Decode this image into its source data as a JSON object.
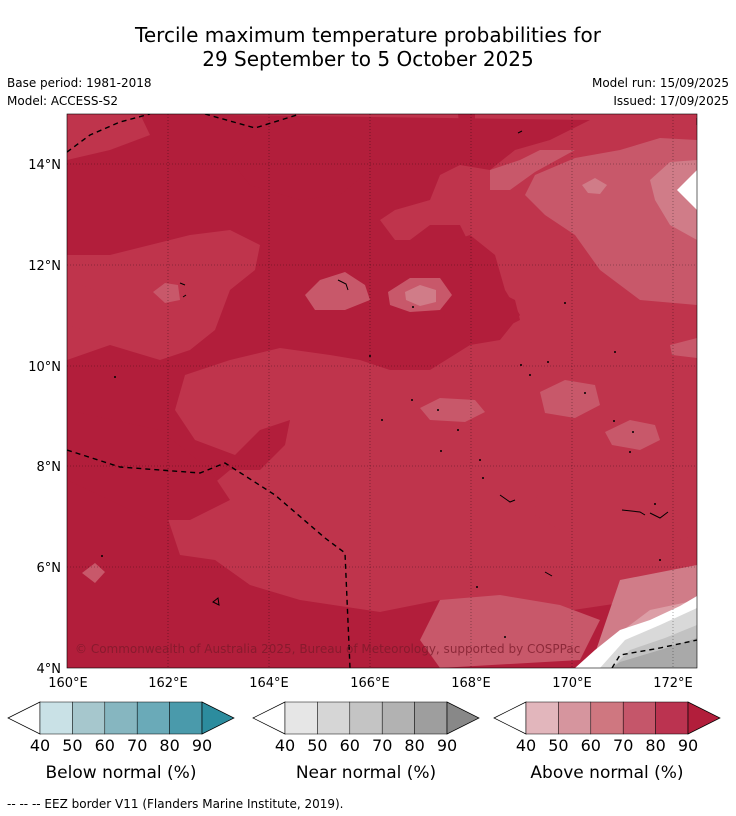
{
  "title": {
    "line1": "Tercile maximum temperature probabilities for",
    "line2": "29 September to 5 October 2025"
  },
  "info": {
    "base_period": "Base period: 1981-2018",
    "model": "Model: ACCESS-S2",
    "model_run": "Model run: 15/09/2025",
    "issued": "Issued: 17/09/2025"
  },
  "map": {
    "lat_labels": [
      "14°N",
      "12°N",
      "10°N",
      "8°N",
      "6°N",
      "4°N"
    ],
    "lon_labels": [
      "160°E",
      "162°E",
      "164°E",
      "166°E",
      "168°E",
      "170°E",
      "172°E"
    ],
    "copyright": "© Commonwealth of Australia 2025, Bureau of Meteorology, supported by COSPPac",
    "dominant_category": "Above normal",
    "colors": {
      "above_90": "#b21e3b",
      "above_80": "#bf344c",
      "above_70": "#c8586a",
      "above_60": "#d07c88",
      "above_50": "#dc9ea6",
      "above_40": "#e8bcc1",
      "near_50": "#d9d9d9",
      "near_60": "#c2c2c2",
      "near_70": "#a9a9a9"
    }
  },
  "colorbars": [
    {
      "label": "Below normal (%)",
      "ticks": [
        "40",
        "50",
        "60",
        "70",
        "80",
        "90"
      ],
      "colors": [
        "#ffffff",
        "#c9e1e6",
        "#a6c7cd",
        "#86b6c0",
        "#6aaab8",
        "#4a9aab",
        "#2c8c9e"
      ]
    },
    {
      "label": "Near normal (%)",
      "ticks": [
        "40",
        "50",
        "60",
        "70",
        "80",
        "90"
      ],
      "colors": [
        "#ffffff",
        "#e6e6e6",
        "#d6d6d6",
        "#c4c4c4",
        "#b2b2b2",
        "#9e9e9e",
        "#888888"
      ]
    },
    {
      "label": "Above normal (%)",
      "ticks": [
        "40",
        "50",
        "60",
        "70",
        "80",
        "90"
      ],
      "colors": [
        "#ffffff",
        "#e2b6bc",
        "#d6959e",
        "#cf7780",
        "#c5566a",
        "#bb3350",
        "#b21e3b"
      ]
    }
  ],
  "footer": "-- -- -- EEZ border V11 (Flanders Marine Institute, 2019)."
}
